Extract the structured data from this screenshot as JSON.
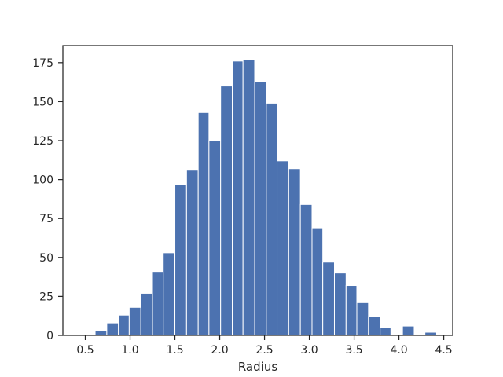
{
  "chart_data": {
    "type": "bar",
    "subtype": "histogram",
    "title": "",
    "xlabel": "Radius",
    "ylabel": "",
    "bar_color": "#4c72b0",
    "bar_edge_color": "#ffffff",
    "xlim": [
      0.25,
      4.6
    ],
    "ylim": [
      0,
      186
    ],
    "xticks": [
      0.5,
      1.0,
      1.5,
      2.0,
      2.5,
      3.0,
      3.5,
      4.0,
      4.5
    ],
    "xtick_labels": [
      "0.5",
      "1.0",
      "1.5",
      "2.0",
      "2.5",
      "3.0",
      "3.5",
      "4.0",
      "4.5"
    ],
    "yticks": [
      0,
      25,
      50,
      75,
      100,
      125,
      150,
      175
    ],
    "ytick_labels": [
      "0",
      "25",
      "50",
      "75",
      "100",
      "125",
      "150",
      "175"
    ],
    "grid": false,
    "bins": [
      {
        "x0": 0.61,
        "x1": 0.74,
        "value": 3
      },
      {
        "x0": 0.74,
        "x1": 0.87,
        "value": 8
      },
      {
        "x0": 0.87,
        "x1": 0.99,
        "value": 13
      },
      {
        "x0": 0.99,
        "x1": 1.12,
        "value": 18
      },
      {
        "x0": 1.12,
        "x1": 1.25,
        "value": 27
      },
      {
        "x0": 1.25,
        "x1": 1.37,
        "value": 41
      },
      {
        "x0": 1.37,
        "x1": 1.5,
        "value": 53
      },
      {
        "x0": 1.5,
        "x1": 1.63,
        "value": 97
      },
      {
        "x0": 1.63,
        "x1": 1.76,
        "value": 106
      },
      {
        "x0": 1.76,
        "x1": 1.88,
        "value": 143
      },
      {
        "x0": 1.88,
        "x1": 2.01,
        "value": 125
      },
      {
        "x0": 2.01,
        "x1": 2.14,
        "value": 160
      },
      {
        "x0": 2.14,
        "x1": 2.26,
        "value": 176
      },
      {
        "x0": 2.26,
        "x1": 2.39,
        "value": 177
      },
      {
        "x0": 2.39,
        "x1": 2.52,
        "value": 163
      },
      {
        "x0": 2.52,
        "x1": 2.64,
        "value": 149
      },
      {
        "x0": 2.64,
        "x1": 2.77,
        "value": 112
      },
      {
        "x0": 2.77,
        "x1": 2.9,
        "value": 107
      },
      {
        "x0": 2.9,
        "x1": 3.03,
        "value": 84
      },
      {
        "x0": 3.03,
        "x1": 3.15,
        "value": 69
      },
      {
        "x0": 3.15,
        "x1": 3.28,
        "value": 47
      },
      {
        "x0": 3.28,
        "x1": 3.41,
        "value": 40
      },
      {
        "x0": 3.41,
        "x1": 3.53,
        "value": 32
      },
      {
        "x0": 3.53,
        "x1": 3.66,
        "value": 21
      },
      {
        "x0": 3.66,
        "x1": 3.79,
        "value": 12
      },
      {
        "x0": 3.79,
        "x1": 3.91,
        "value": 5
      },
      {
        "x0": 3.91,
        "x1": 4.04,
        "value": 0
      },
      {
        "x0": 4.04,
        "x1": 4.17,
        "value": 6
      },
      {
        "x0": 4.17,
        "x1": 4.29,
        "value": 0
      },
      {
        "x0": 4.29,
        "x1": 4.42,
        "value": 2
      }
    ]
  }
}
